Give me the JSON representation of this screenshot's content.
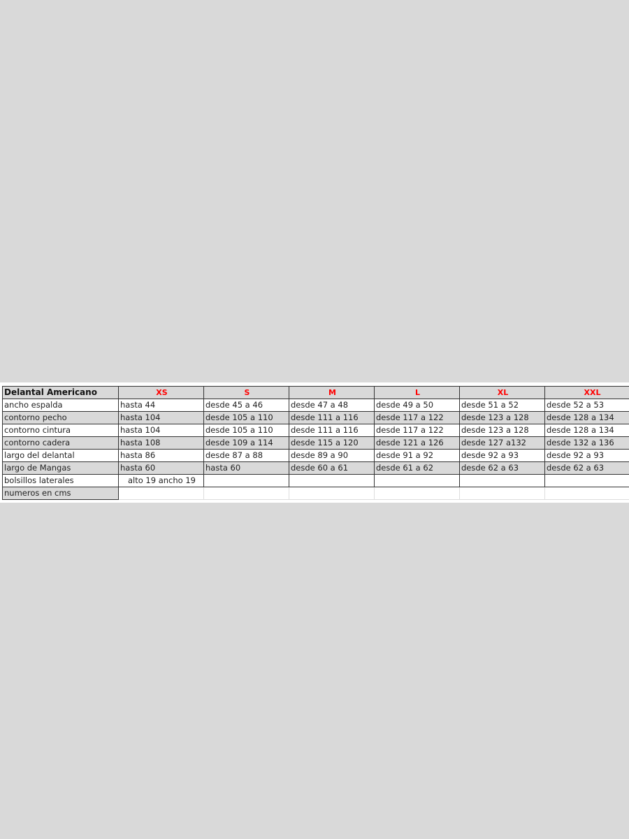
{
  "table": {
    "title": "Delantal Americano",
    "sizes": [
      "XS",
      "S",
      "M",
      "L",
      "XL",
      "XXL"
    ],
    "rows": [
      {
        "label": "ancho espalda",
        "values": [
          "hasta 44",
          "desde 45 a 46",
          "desde 47 a 48",
          "desde 49 a 50",
          "desde 51 a 52",
          "desde 52 a 53"
        ]
      },
      {
        "label": "contorno pecho",
        "values": [
          "hasta 104",
          "desde 105 a 110",
          "desde 111 a 116",
          "desde 117 a 122",
          "desde 123 a 128",
          "desde 128 a 134"
        ]
      },
      {
        "label": "contorno cintura",
        "values": [
          "hasta 104",
          "desde 105 a 110",
          "desde 111 a 116",
          "desde 117 a 122",
          "desde 123 a 128",
          "desde 128 a 134"
        ]
      },
      {
        "label": "contorno cadera",
        "values": [
          "hasta 108",
          "desde 109 a 114",
          "desde 115 a 120",
          "desde 121 a 126",
          "desde 127 a132",
          "desde 132 a 136"
        ]
      },
      {
        "label": "largo del delantal",
        "values": [
          "hasta 86",
          "desde 87 a 88",
          "desde 89 a 90",
          "desde 91 a 92",
          "desde 92 a 93",
          "desde 92 a 93"
        ]
      },
      {
        "label": "largo de Mangas",
        "values": [
          "hasta 60",
          "hasta 60",
          "desde 60 a 61",
          "desde 61 a 62",
          "desde 62 a 63",
          "desde 62 a 63"
        ]
      }
    ],
    "pockets": {
      "label": "bolsillos laterales",
      "value": "alto 19 ancho 19"
    },
    "note": "numeros en cms"
  },
  "colors": {
    "size_header": "#ff0000",
    "shaded_row": "#d9d9d9"
  }
}
